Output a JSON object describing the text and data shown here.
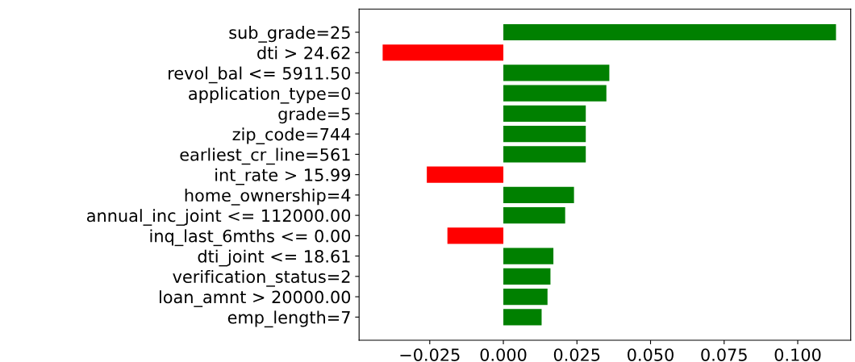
{
  "chart_data": {
    "type": "bar",
    "orientation": "horizontal",
    "categories": [
      "sub_grade=25",
      "dti > 24.62",
      "revol_bal <= 5911.50",
      "application_type=0",
      "grade=5",
      "zip_code=744",
      "earliest_cr_line=561",
      "int_rate > 15.99",
      "home_ownership=4",
      "annual_inc_joint <= 112000.00",
      "inq_last_6mths <= 0.00",
      "dti_joint <= 18.61",
      "verification_status=2",
      "loan_amnt > 20000.00",
      "emp_length=7"
    ],
    "values": [
      0.113,
      -0.041,
      0.036,
      0.035,
      0.028,
      0.028,
      0.028,
      -0.026,
      0.024,
      0.021,
      -0.019,
      0.017,
      0.016,
      0.015,
      0.013
    ],
    "colors": [
      "#008000",
      "#ff0000",
      "#008000",
      "#008000",
      "#008000",
      "#008000",
      "#008000",
      "#ff0000",
      "#008000",
      "#008000",
      "#ff0000",
      "#008000",
      "#008000",
      "#008000",
      "#008000"
    ],
    "xlim": [
      -0.049,
      0.118
    ],
    "xticks": [
      {
        "value": -0.025,
        "label": "−0.025"
      },
      {
        "value": 0,
        "label": "0.000"
      },
      {
        "value": 0.025,
        "label": "0.025"
      },
      {
        "value": 0.05,
        "label": "0.050"
      },
      {
        "value": 0.075,
        "label": "0.075"
      },
      {
        "value": 0.1,
        "label": "0.100"
      }
    ],
    "grid": false,
    "legend": false
  }
}
